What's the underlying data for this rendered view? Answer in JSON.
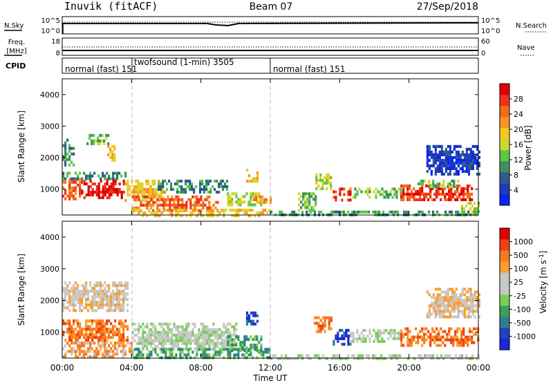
{
  "header": {
    "title": "Inuvik (fitACF)",
    "beam": "Beam 07",
    "date": "27/Sep/2018"
  },
  "top_panels": {
    "nsky_label": "N.Sky",
    "nsearch_label": "N.Search",
    "noise_ticks": [
      "10^5",
      "10^0"
    ],
    "freq_label": "Freq.",
    "freq_unit": "[MHz]",
    "freq_ticks": [
      "18",
      "8"
    ],
    "nave_label": "Nave",
    "nave_ticks": [
      "60",
      "0"
    ],
    "cpid_label": "CPID"
  },
  "cpid_segments": [
    {
      "label": "normal (fast)  151",
      "start_hour": 0
    },
    {
      "label": "twofsound (1-min)  3505",
      "start_hour": 4
    },
    {
      "label": "normal (fast)  151",
      "start_hour": 12
    }
  ],
  "colors": {
    "power": [
      "#0a24ff",
      "#203cb8",
      "#2e5d8c",
      "#3f8f5f",
      "#59c847",
      "#cfd832",
      "#f5c91b",
      "#f89520",
      "#f46a1c",
      "#f0321a",
      "#e00000"
    ],
    "velocity": [
      "#e00000",
      "#f04010",
      "#f87820",
      "#f9a030",
      "#c8c8c8",
      "#c8c8c8",
      "#79cf56",
      "#3e9c5c",
      "#2f7e8f",
      "#2440c0",
      "#1a26e0"
    ]
  },
  "chart_data": [
    {
      "type": "heatmap",
      "name": "power",
      "ylabel": "Slant Range [km]",
      "colorbar_label": "Power [dB]",
      "colorbar_ticks": [
        "28",
        "24",
        "20",
        "16",
        "12",
        "8",
        "4"
      ],
      "ylim": [
        180,
        4500
      ],
      "yticks": [
        "1000",
        "2000",
        "3000",
        "4000"
      ],
      "xlim": [
        0,
        24
      ],
      "xticks": [
        "00:00",
        "04:00",
        "08:00",
        "12:00",
        "16:00",
        "20:00",
        "00:00"
      ],
      "bands": [
        {
          "t": [
            0.0,
            1.1
          ],
          "r": [
            650,
            1350
          ],
          "level": 8
        },
        {
          "t": [
            0.0,
            3.8
          ],
          "r": [
            1300,
            1550
          ],
          "level": 3
        },
        {
          "t": [
            1.1,
            3.5
          ],
          "r": [
            700,
            1300
          ],
          "level": 10
        },
        {
          "t": [
            0.0,
            0.7
          ],
          "r": [
            1750,
            2600
          ],
          "level": 3
        },
        {
          "t": [
            1.4,
            2.6
          ],
          "r": [
            2400,
            2750
          ],
          "level": 4
        },
        {
          "t": [
            2.6,
            3.0
          ],
          "r": [
            1900,
            2400
          ],
          "level": 6
        },
        {
          "t": [
            3.6,
            5.8
          ],
          "r": [
            650,
            1300
          ],
          "level": 6
        },
        {
          "t": [
            4.0,
            9.0
          ],
          "r": [
            300,
            800
          ],
          "level": 8
        },
        {
          "t": [
            5.5,
            9.5
          ],
          "r": [
            900,
            1300
          ],
          "level": 3
        },
        {
          "t": [
            4.0,
            12.0
          ],
          "r": [
            180,
            380
          ],
          "level": 6
        },
        {
          "t": [
            9.5,
            11.5
          ],
          "r": [
            500,
            900
          ],
          "level": 5
        },
        {
          "t": [
            11.0,
            12.0
          ],
          "r": [
            550,
            800
          ],
          "level": 7
        },
        {
          "t": [
            10.6,
            11.2
          ],
          "r": [
            1250,
            1650
          ],
          "level": 6
        },
        {
          "t": [
            13.6,
            14.6
          ],
          "r": [
            300,
            900
          ],
          "level": 4
        },
        {
          "t": [
            14.6,
            15.5
          ],
          "r": [
            1000,
            1500
          ],
          "level": 5
        },
        {
          "t": [
            15.6,
            16.6
          ],
          "r": [
            650,
            1050
          ],
          "level": 9
        },
        {
          "t": [
            16.6,
            19.5
          ],
          "r": [
            750,
            1050
          ],
          "level": 4
        },
        {
          "t": [
            19.5,
            23.6
          ],
          "r": [
            650,
            1150
          ],
          "level": 9
        },
        {
          "t": [
            20.5,
            23.0
          ],
          "r": [
            1100,
            1300
          ],
          "level": 4
        },
        {
          "t": [
            21.0,
            24.0
          ],
          "r": [
            1500,
            2400
          ],
          "level": 1
        },
        {
          "t": [
            23.0,
            24.0
          ],
          "r": [
            180,
            600
          ],
          "level": 5
        },
        {
          "t": [
            12.0,
            24.0
          ],
          "r": [
            180,
            320
          ],
          "level": 3
        }
      ]
    },
    {
      "type": "heatmap",
      "name": "velocity",
      "ylabel": "Slant Range [km]",
      "colorbar_label": "Velocity [m s^-1]",
      "colorbar_ticks": [
        "1000",
        "500",
        "100",
        "25",
        "-25",
        "-100",
        "-500",
        "-1000"
      ],
      "ylim": [
        180,
        4500
      ],
      "yticks": [
        "1000",
        "2000",
        "3000",
        "4000"
      ],
      "xlim": [
        0,
        24
      ],
      "xticks": [
        "00:00",
        "04:00",
        "08:00",
        "12:00",
        "16:00",
        "20:00",
        "00:00"
      ],
      "xlabel": "Time UT",
      "bands": [
        {
          "t": [
            0.0,
            3.8
          ],
          "r": [
            700,
            1400
          ],
          "level": 2
        },
        {
          "t": [
            0.0,
            3.8
          ],
          "r": [
            1700,
            2600
          ],
          "level": 4
        },
        {
          "t": [
            0.0,
            4.0
          ],
          "r": [
            180,
            700
          ],
          "level": 3
        },
        {
          "t": [
            4.0,
            10.0
          ],
          "r": [
            500,
            1300
          ],
          "level": 5
        },
        {
          "t": [
            4.0,
            12.0
          ],
          "r": [
            180,
            500
          ],
          "level": 7
        },
        {
          "t": [
            9.5,
            11.5
          ],
          "r": [
            400,
            900
          ],
          "level": 7
        },
        {
          "t": [
            10.6,
            11.2
          ],
          "r": [
            1250,
            1650
          ],
          "level": 9
        },
        {
          "t": [
            12.0,
            24.0
          ],
          "r": [
            180,
            300
          ],
          "level": 5
        },
        {
          "t": [
            14.5,
            15.5
          ],
          "r": [
            1000,
            1500
          ],
          "level": 2
        },
        {
          "t": [
            15.6,
            16.6
          ],
          "r": [
            650,
            1100
          ],
          "level": 9
        },
        {
          "t": [
            16.6,
            19.5
          ],
          "r": [
            700,
            1100
          ],
          "level": 5
        },
        {
          "t": [
            19.5,
            24.0
          ],
          "r": [
            600,
            1150
          ],
          "level": 2
        },
        {
          "t": [
            21.0,
            24.0
          ],
          "r": [
            1500,
            2400
          ],
          "level": 4
        }
      ]
    }
  ]
}
